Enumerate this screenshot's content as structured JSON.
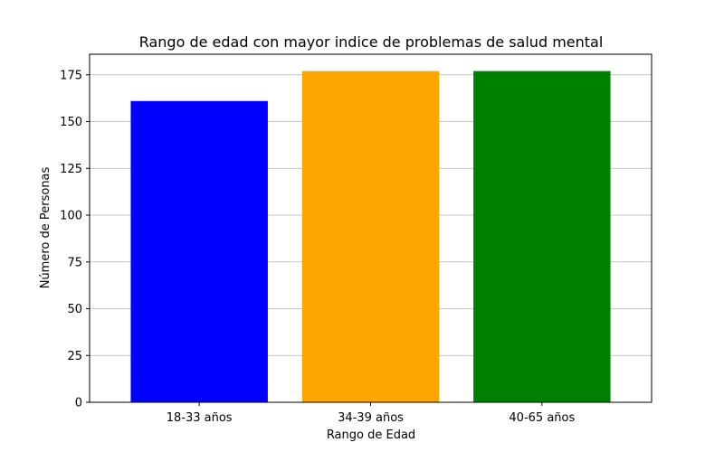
{
  "chart_data": {
    "type": "bar",
    "title": "Rango de edad con mayor indice de problemas de salud mental",
    "xlabel": "Rango de Edad",
    "ylabel": "Número de Personas",
    "categories": [
      "18-33 años",
      "34-39 años",
      "40-65 años"
    ],
    "values": [
      161,
      177,
      177
    ],
    "colors": [
      "#0000ff",
      "#ffa500",
      "#008000"
    ],
    "ylim": [
      0,
      186
    ],
    "yticks": [
      0,
      25,
      50,
      75,
      100,
      125,
      150,
      175
    ],
    "grid": "y",
    "legend": "none"
  }
}
